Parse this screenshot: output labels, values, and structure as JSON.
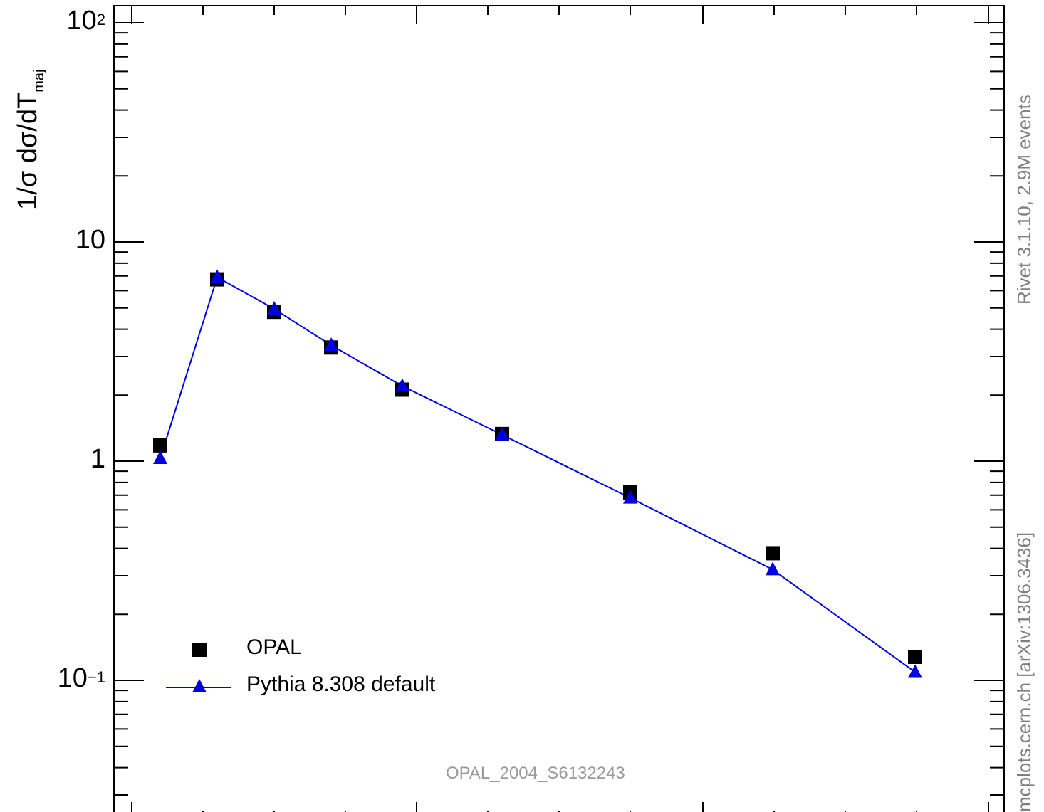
{
  "chart_data": {
    "type": "line",
    "ylabel_main": "1/σ dσ/dT",
    "ylabel_sub": "maj",
    "yscale": "log",
    "ylim": [
      0.03,
      120
    ],
    "xlim": [
      0,
      0.6
    ],
    "yticks": [
      {
        "value": 100,
        "base": "10",
        "exp": "2"
      },
      {
        "value": 10,
        "base": "10",
        "exp": ""
      },
      {
        "value": 1,
        "base": "1",
        "exp": ""
      },
      {
        "value": 0.1,
        "base": "10",
        "exp": "−1"
      }
    ],
    "series": [
      {
        "name": "OPAL",
        "marker": "square",
        "color": "#000000",
        "x": [
          0.01,
          0.03,
          0.05,
          0.07,
          0.095,
          0.13,
          0.175,
          0.225,
          0.275
        ],
        "y": [
          1.18,
          6.75,
          4.8,
          3.3,
          2.12,
          1.33,
          0.72,
          0.38,
          0.128
        ]
      },
      {
        "name": "Pythia 8.308 default",
        "marker": "triangle",
        "color": "#0000e0",
        "x": [
          0.01,
          0.03,
          0.05,
          0.07,
          0.095,
          0.13,
          0.175,
          0.225,
          0.275
        ],
        "y": [
          1.03,
          6.9,
          4.95,
          3.38,
          2.2,
          1.32,
          0.68,
          0.32,
          0.109
        ]
      }
    ],
    "legend_position": "bottom-left"
  },
  "side_text_top": "Rivet 3.1.10,  2.9M events",
  "side_text_bottom": "mcplots.cern.ch [arXiv:1306.3436]",
  "analysis_id": "OPAL_2004_S6132243"
}
